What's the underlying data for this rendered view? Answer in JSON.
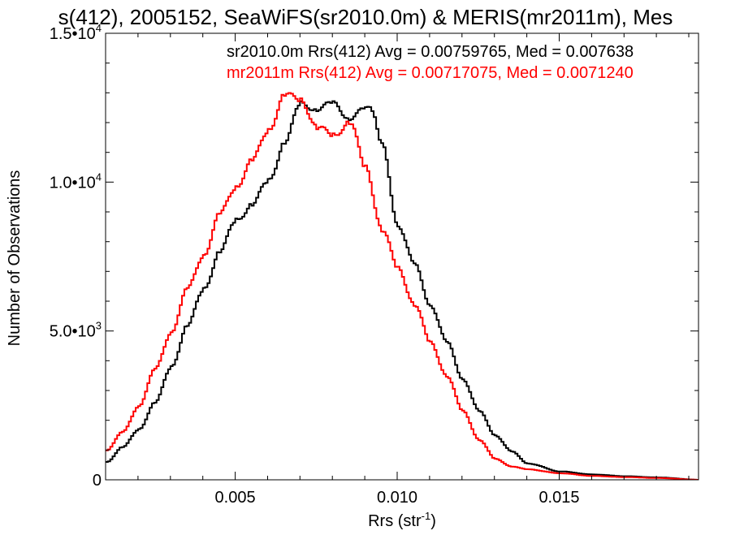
{
  "chart_data": {
    "type": "line",
    "title": "s(412), 2005152, SeaWiFS(sr2010.0m) & MERIS(mr2011m), Mes",
    "xlabel": "Rrs (str",
    "xlabel_sup": "-1",
    "xlabel_close": ")",
    "ylabel": "Number of Observations",
    "xlim": [
      0.001,
      0.0193
    ],
    "ylim": [
      0,
      15000
    ],
    "step_style": "histogram",
    "grid": false,
    "legend_position": "top-right",
    "x_ticks": [
      {
        "value": 0.005,
        "label": "0.005"
      },
      {
        "value": 0.01,
        "label": "0.010"
      },
      {
        "value": 0.015,
        "label": "0.015"
      }
    ],
    "y_ticks": [
      {
        "value": 0,
        "label": "0",
        "sup": ""
      },
      {
        "value": 5000,
        "label": "5.0•10",
        "sup": "3"
      },
      {
        "value": 10000,
        "label": "1.0•10",
        "sup": "4"
      },
      {
        "value": 15000,
        "label": "1.5•10",
        "sup": "4"
      }
    ],
    "series": [
      {
        "name": "sr2010.0m Rrs(412) Avg = 0.00759765, Med = 0.007638",
        "color": "#000000",
        "x": [
          0.001,
          0.0015,
          0.002,
          0.0025,
          0.003,
          0.0035,
          0.004,
          0.0045,
          0.005,
          0.0055,
          0.006,
          0.0065,
          0.007,
          0.0075,
          0.008,
          0.0085,
          0.009,
          0.0092,
          0.0095,
          0.01,
          0.0105,
          0.011,
          0.0115,
          0.012,
          0.0125,
          0.013,
          0.0135,
          0.014,
          0.015,
          0.016,
          0.017,
          0.018,
          0.0193
        ],
        "y": [
          600,
          1100,
          1700,
          2600,
          3800,
          5200,
          6400,
          7700,
          8700,
          9300,
          10000,
          11400,
          12600,
          12500,
          12600,
          12200,
          12400,
          12500,
          11200,
          8600,
          7200,
          5900,
          4600,
          3400,
          2300,
          1500,
          950,
          550,
          280,
          180,
          120,
          80,
          0
        ]
      },
      {
        "name": "mr2011m Rrs(412) Avg = 0.00717075, Med = 0.0071240",
        "color": "#ff0000",
        "x": [
          0.001,
          0.0015,
          0.002,
          0.0025,
          0.003,
          0.0035,
          0.004,
          0.0045,
          0.005,
          0.0055,
          0.006,
          0.0065,
          0.007,
          0.0075,
          0.008,
          0.0085,
          0.009,
          0.0095,
          0.01,
          0.0105,
          0.011,
          0.0115,
          0.012,
          0.0125,
          0.013,
          0.0135,
          0.014,
          0.015,
          0.016,
          0.017,
          0.018,
          0.0193
        ],
        "y": [
          1000,
          1600,
          2500,
          3700,
          5000,
          6400,
          7600,
          8900,
          9900,
          10700,
          11800,
          12900,
          12800,
          11800,
          11600,
          12000,
          10500,
          8400,
          7100,
          5900,
          4600,
          3500,
          2300,
          1350,
          700,
          450,
          350,
          220,
          130,
          90,
          60,
          0
        ]
      }
    ]
  }
}
